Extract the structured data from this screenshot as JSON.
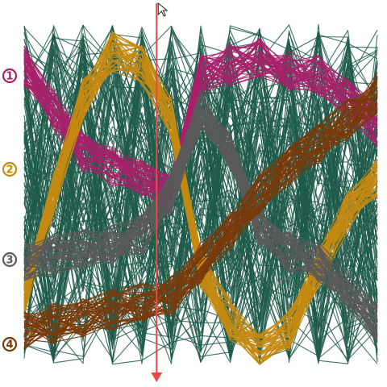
{
  "chart_data": {
    "type": "line",
    "title": "",
    "xlabel": "",
    "ylabel": "",
    "grid": false,
    "legend": "none",
    "background_color": "#ffffff",
    "noise_color": "#1f5a4a",
    "axis_count": 13,
    "ylim": [
      0,
      1
    ],
    "groups": [
      {
        "label": "1",
        "color": "#a8206a",
        "centerline": [
          0.88,
          0.75,
          0.62,
          0.58,
          0.55,
          0.5,
          0.85,
          0.88,
          0.9,
          0.86,
          0.85,
          0.78,
          0.7
        ]
      },
      {
        "label": "2",
        "color": "#c48a12",
        "centerline": [
          0.2,
          0.5,
          0.78,
          0.92,
          0.88,
          0.72,
          0.28,
          0.13,
          0.03,
          0.1,
          0.28,
          0.45,
          0.55
        ]
      },
      {
        "label": "3",
        "color": "#5a5a5a",
        "centerline": [
          0.3,
          0.32,
          0.34,
          0.35,
          0.38,
          0.5,
          0.75,
          0.62,
          0.4,
          0.33,
          0.3,
          0.22,
          0.12
        ]
      },
      {
        "label": "4",
        "color": "#7a3a0a",
        "centerline": [
          0.1,
          0.12,
          0.14,
          0.16,
          0.18,
          0.2,
          0.3,
          0.4,
          0.5,
          0.58,
          0.65,
          0.72,
          0.8
        ]
      }
    ],
    "cursor": {
      "axis_index": 4.5,
      "color": "#e84a4a"
    }
  }
}
